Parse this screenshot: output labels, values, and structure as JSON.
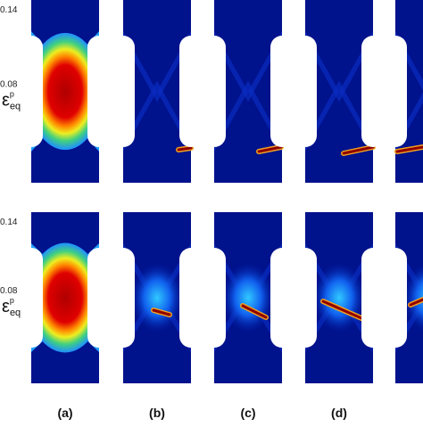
{
  "rows": [
    {
      "scale_max": "0.14",
      "scale_mid": "0.08",
      "variable": {
        "base": "ε",
        "sup": "p",
        "sub": "eq"
      }
    },
    {
      "scale_max": "0.14",
      "scale_mid": "0.08",
      "variable": {
        "base": "ε",
        "sup": "p",
        "sub": "eq"
      }
    }
  ],
  "panel_labels": [
    "(a)",
    "(b)",
    "(c)",
    "(d)"
  ]
}
